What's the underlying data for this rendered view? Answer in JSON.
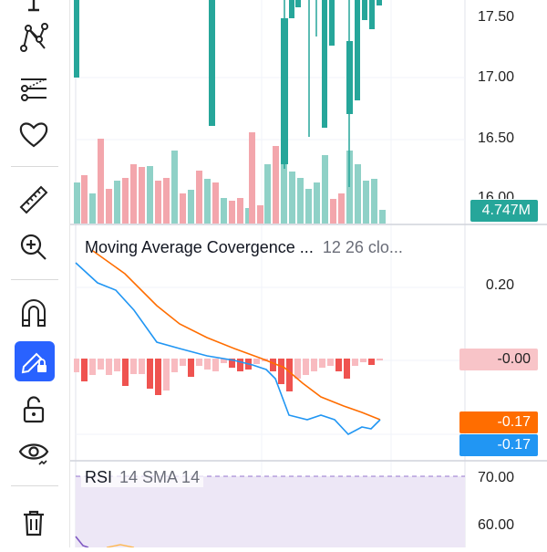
{
  "toolbar": {
    "tools": [
      {
        "name": "cursor-tool",
        "icon": "cursor-icon"
      },
      {
        "name": "pattern-tool",
        "icon": "pattern-icon"
      },
      {
        "name": "forecast-tool",
        "icon": "prediction-icon"
      },
      {
        "name": "favorite-tool",
        "icon": "heart-icon"
      },
      {
        "name": "ruler-tool",
        "icon": "ruler-icon"
      },
      {
        "name": "zoom-tool",
        "icon": "zoom-in-icon"
      },
      {
        "name": "magnet-tool",
        "icon": "magnet-icon"
      },
      {
        "name": "lock-drawing-tool",
        "icon": "pencil-lock-icon",
        "active": true
      },
      {
        "name": "lock-tool",
        "icon": "unlock-icon"
      },
      {
        "name": "visibility-tool",
        "icon": "eye-icon"
      },
      {
        "name": "delete-tool",
        "icon": "trash-icon"
      }
    ]
  },
  "price_pane": {
    "axis": [
      "17.50",
      "17.00",
      "16.50",
      "16.00"
    ],
    "volume_badge": "4.747M",
    "colors": {
      "up": "#26a69a",
      "down": "#ef5350",
      "up_volume": "#8fd1c7",
      "down_volume": "#f3a6ac"
    }
  },
  "macd_pane": {
    "title": "Moving Average Covergence ...",
    "args": "12 26 clo...",
    "axis": [
      "0.20"
    ],
    "histogram_badge": "-0.00",
    "signal_badge": "-0.17",
    "macd_badge": "-0.17",
    "colors": {
      "macd": "#2196f3",
      "signal": "#ff6d00",
      "hist_neg": "#ef5350",
      "hist_neg_light": "#f8bbc0"
    }
  },
  "rsi_pane": {
    "title": "RSI",
    "args": "14 SMA 14",
    "axis": [
      "70.00",
      "60.00"
    ],
    "colors": {
      "band": "#ede7f6",
      "line": "#7e57c2"
    }
  }
}
